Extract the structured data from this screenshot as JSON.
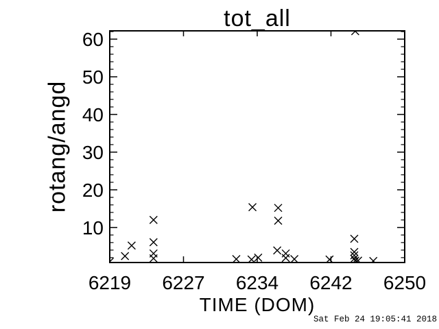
{
  "window": {
    "background_color": "#ffffff",
    "foreground_color": "#000000"
  },
  "footer": {
    "timestamp": "Sat Feb 24 19:05:41 2018"
  },
  "chart_data": {
    "type": "scatter",
    "title": "tot_all",
    "xlabel": "TIME (DOM)",
    "ylabel": "rotang/angd",
    "marker": "x",
    "marker_color": "#000000",
    "grid": false,
    "xlim": [
      6219,
      6250
    ],
    "ylim": [
      0.7,
      62.2
    ],
    "x_ticks": [
      "6219",
      "6227",
      "6234",
      "6242",
      "6250"
    ],
    "x_tick_positions": [
      6219,
      6226.75,
      6234.5,
      6242.25,
      6250
    ],
    "y_ticks": [
      10,
      20,
      30,
      40,
      50,
      60
    ],
    "y_minor_tick_step": 2,
    "points": [
      [
        6219.0,
        0.9
      ],
      [
        6220.6,
        2.4
      ],
      [
        6221.3,
        5.2
      ],
      [
        6223.6,
        12.0
      ],
      [
        6223.6,
        6.1
      ],
      [
        6223.6,
        3.1
      ],
      [
        6223.6,
        1.8
      ],
      [
        6232.3,
        1.6
      ],
      [
        6233.9,
        1.5
      ],
      [
        6234.0,
        15.4
      ],
      [
        6234.6,
        2.0
      ],
      [
        6236.6,
        3.9
      ],
      [
        6236.7,
        15.2
      ],
      [
        6236.7,
        11.8
      ],
      [
        6237.5,
        3.1
      ],
      [
        6237.5,
        1.9
      ],
      [
        6238.4,
        1.6
      ],
      [
        6242.1,
        1.5
      ],
      [
        6244.7,
        7.0
      ],
      [
        6244.7,
        3.5
      ],
      [
        6244.7,
        2.6
      ],
      [
        6244.7,
        1.7
      ],
      [
        6244.8,
        1.2
      ],
      [
        6244.8,
        62.1
      ],
      [
        6245.1,
        1.2
      ],
      [
        6246.7,
        1.1
      ]
    ]
  }
}
